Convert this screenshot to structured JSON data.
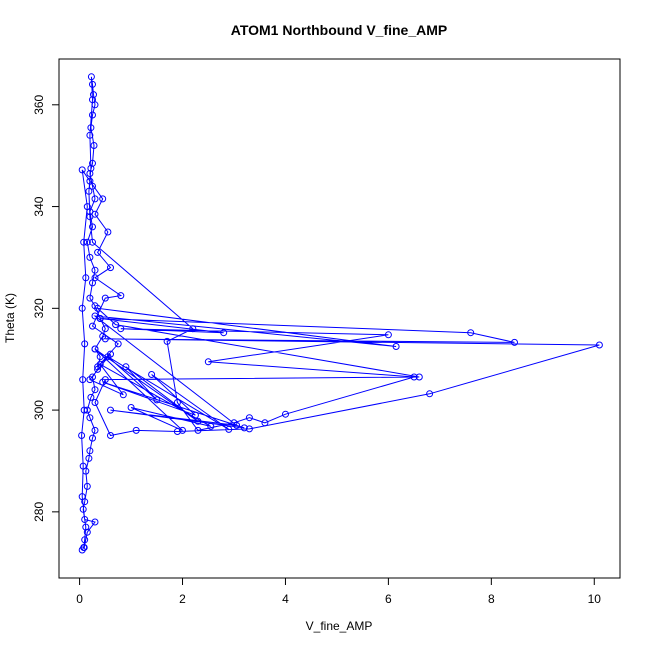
{
  "chart_data": {
    "type": "line",
    "title": "ATOM1 Northbound V_fine_AMP",
    "xlabel": "V_fine_AMP",
    "ylabel": "Theta (K)",
    "xlim": [
      -0.4,
      10.5
    ],
    "ylim": [
      267,
      369
    ],
    "xticks": [
      0,
      2,
      4,
      6,
      8,
      10
    ],
    "yticks": [
      280,
      300,
      320,
      340,
      360
    ],
    "marker": "open-circle",
    "line_style": "solid",
    "series_color": "#0000ff",
    "series": [
      {
        "name": "",
        "points": [
          [
            0.05,
            272.5
          ],
          [
            0.08,
            273.0
          ],
          [
            0.1,
            274.5
          ],
          [
            0.12,
            277.0
          ],
          [
            0.07,
            280.5
          ],
          [
            0.1,
            282.0
          ],
          [
            0.15,
            285.0
          ],
          [
            0.12,
            288.0
          ],
          [
            0.18,
            290.5
          ],
          [
            0.2,
            292.0
          ],
          [
            0.25,
            294.5
          ],
          [
            0.3,
            296.0
          ],
          [
            0.2,
            298.5
          ],
          [
            0.15,
            300.0
          ],
          [
            0.22,
            302.5
          ],
          [
            0.3,
            304.0
          ],
          [
            0.25,
            306.5
          ],
          [
            0.35,
            308.0
          ],
          [
            0.4,
            310.5
          ],
          [
            0.3,
            312.0
          ],
          [
            0.45,
            314.5
          ],
          [
            0.5,
            316.0
          ],
          [
            0.4,
            318.0
          ],
          [
            0.3,
            320.5
          ],
          [
            0.2,
            322.0
          ],
          [
            0.25,
            325.0
          ],
          [
            0.3,
            327.5
          ],
          [
            0.2,
            330.0
          ],
          [
            0.15,
            333.0
          ],
          [
            0.25,
            336.0
          ],
          [
            0.2,
            339.0
          ],
          [
            0.3,
            341.5
          ],
          [
            0.25,
            344.0
          ],
          [
            0.2,
            346.5
          ],
          [
            0.25,
            348.5
          ],
          [
            0.28,
            352.0
          ],
          [
            0.22,
            355.5
          ],
          [
            0.25,
            358.0
          ],
          [
            0.3,
            360.0
          ],
          [
            0.27,
            362.0
          ],
          [
            0.25,
            364.0
          ],
          [
            0.23,
            365.5
          ],
          [
            0.25,
            361.0
          ],
          [
            0.2,
            354.0
          ],
          [
            0.22,
            347.5
          ],
          [
            0.18,
            343.0
          ],
          [
            0.2,
            338.0
          ],
          [
            0.25,
            333.0
          ],
          [
            2.2,
            316.0
          ],
          [
            1.7,
            313.5
          ],
          [
            1.9,
            301.5
          ],
          [
            2.3,
            296.0
          ],
          [
            3.0,
            297.5
          ],
          [
            3.3,
            298.5
          ],
          [
            3.6,
            297.5
          ],
          [
            4.0,
            299.2
          ],
          [
            6.5,
            306.5
          ],
          [
            2.5,
            309.5
          ],
          [
            6.0,
            314.8
          ],
          [
            0.8,
            316.0
          ],
          [
            2.8,
            315.2
          ],
          [
            0.4,
            318.0
          ],
          [
            7.6,
            315.2
          ],
          [
            8.45,
            313.3
          ],
          [
            0.5,
            314.0
          ],
          [
            10.1,
            312.8
          ],
          [
            6.8,
            303.2
          ],
          [
            3.3,
            296.3
          ],
          [
            1.9,
            295.8
          ],
          [
            1.1,
            296.0
          ],
          [
            0.6,
            295.0
          ],
          [
            0.3,
            301.5
          ],
          [
            0.5,
            306.0
          ],
          [
            6.6,
            306.5
          ],
          [
            0.7,
            316.8
          ],
          [
            0.35,
            320.0
          ],
          [
            6.15,
            312.5
          ],
          [
            0.3,
            318.5
          ],
          [
            3.05,
            297.0
          ],
          [
            0.6,
            300.0
          ],
          [
            3.2,
            296.5
          ],
          [
            0.45,
            305.5
          ],
          [
            2.25,
            299.0
          ],
          [
            1.4,
            307.0
          ],
          [
            2.9,
            296.2
          ],
          [
            0.55,
            310.5
          ],
          [
            1.5,
            302.0
          ],
          [
            0.9,
            308.5
          ],
          [
            2.3,
            297.8
          ],
          [
            0.3,
            312.0
          ],
          [
            2.0,
            296.0
          ],
          [
            1.0,
            300.5
          ],
          [
            2.55,
            296.8
          ],
          [
            0.4,
            309.0
          ],
          [
            0.85,
            303.0
          ],
          [
            0.2,
            306.0
          ],
          [
            0.6,
            311.0
          ],
          [
            0.35,
            308.5
          ],
          [
            0.75,
            313.0
          ],
          [
            0.25,
            316.5
          ],
          [
            0.5,
            322.0
          ],
          [
            0.8,
            322.5
          ],
          [
            0.3,
            326.0
          ],
          [
            0.6,
            328.0
          ],
          [
            0.35,
            331.0
          ],
          [
            0.55,
            335.0
          ],
          [
            0.3,
            338.5
          ],
          [
            0.45,
            341.5
          ],
          [
            0.2,
            345.0
          ],
          [
            0.05,
            347.2
          ],
          [
            0.15,
            340.0
          ],
          [
            0.08,
            333.0
          ],
          [
            0.12,
            326.0
          ],
          [
            0.05,
            320.0
          ],
          [
            0.1,
            313.0
          ],
          [
            0.06,
            306.0
          ],
          [
            0.09,
            300.0
          ],
          [
            0.04,
            295.0
          ],
          [
            0.07,
            289.0
          ],
          [
            0.05,
            283.0
          ],
          [
            0.1,
            278.5
          ],
          [
            0.3,
            278.0
          ],
          [
            0.15,
            276.0
          ],
          [
            0.09,
            273.0
          ]
        ]
      }
    ]
  }
}
